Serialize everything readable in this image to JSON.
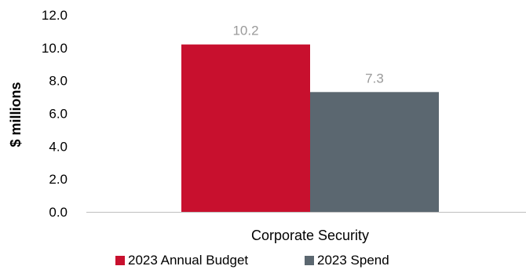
{
  "chart_data": {
    "type": "bar",
    "categories": [
      "Corporate Security"
    ],
    "series": [
      {
        "name": "2023 Annual Budget",
        "values": [
          10.2
        ],
        "color": "#c8102e"
      },
      {
        "name": "2023 Spend",
        "values": [
          7.3
        ],
        "color": "#5b6770"
      }
    ],
    "ylabel": "$ millions",
    "ylim": [
      0,
      12
    ],
    "yticks": [
      "0.0",
      "2.0",
      "4.0",
      "6.0",
      "8.0",
      "10.0",
      "12.0"
    ],
    "data_labels": [
      "10.2",
      "7.3"
    ],
    "grid": false,
    "legend_position": "bottom"
  }
}
